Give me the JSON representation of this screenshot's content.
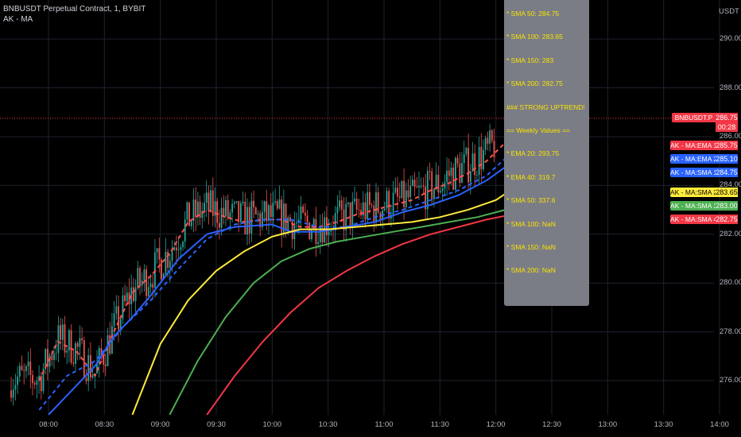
{
  "header": {
    "title": "BNBUSDT Perpetual Contract, 1, BYBIT",
    "indicator": "AK - MA"
  },
  "info_box": {
    "lines": [
      "* SMA 50: 284.75",
      "* SMA 100: 283.65",
      "* SMA 150: 283",
      "* SMA 200: 282.75",
      "### STRONG UPTREND!",
      "== Weekly Values ==",
      "* EMA 20: 293.75",
      "* EMA 40: 319.7",
      "* SMA 50: 337.6",
      "* SMA 100: NaN",
      "* SMA 150: NaN",
      "* SMA 200: NaN"
    ]
  },
  "price_axis": {
    "unit": "USDT",
    "ticks": [
      "290.00",
      "288.00",
      "286.00",
      "284.00",
      "282.00",
      "280.00",
      "278.00",
      "276.00"
    ]
  },
  "time_axis": {
    "ticks": [
      "08:00",
      "08:30",
      "09:00",
      "09:30",
      "10:00",
      "10:30",
      "11:00",
      "11:30",
      "12:00",
      "12:30",
      "13:00",
      "13:30",
      "14:00"
    ]
  },
  "last_price": {
    "symbol": "BNBUSDT.P",
    "price": "286.75",
    "countdown": "00:28",
    "color": "#f23645"
  },
  "ma_labels": [
    {
      "name": "AK - MA:EMA 1",
      "value": "285.75",
      "color": "#f23645"
    },
    {
      "name": "AK - MA:EMA 2",
      "value": "285.10",
      "color": "#2962ff"
    },
    {
      "name": "AK - MA:SMA 1",
      "value": "284.75",
      "color": "#2962ff"
    },
    {
      "name": "AK - MA:SMA 2",
      "value": "283.65",
      "color": "#ffeb3b"
    },
    {
      "name": "AK - MA:SMA 3",
      "value": "283.00",
      "color": "#4caf50"
    },
    {
      "name": "AK - MA:SMA 4",
      "value": "282.75",
      "color": "#f23645"
    }
  ],
  "colors": {
    "up": "#26a69a",
    "down": "#ef5350",
    "ema1": "#ff5252",
    "ema2": "#2962ff",
    "sma1": "#2962ff",
    "sma2": "#ffeb3b",
    "sma3": "#4caf50",
    "sma4": "#f23645",
    "grid": "#1e222d"
  },
  "chart_data": {
    "type": "line",
    "title": "BNBUSDT Perpetual Contract, 1, BYBIT",
    "y_range": [
      274.6,
      291.6
    ],
    "x_range": [
      "07:45",
      "14:15"
    ],
    "series": [
      {
        "name": "AK - MA:EMA 1",
        "style": "dashed",
        "x": [
          "07:55",
          "08:05",
          "08:15",
          "08:25",
          "08:35",
          "08:45",
          "08:55",
          "09:05",
          "09:15",
          "09:25",
          "09:35",
          "09:45",
          "09:55",
          "10:05",
          "10:15",
          "10:25",
          "10:35",
          "10:45",
          "10:55",
          "11:05",
          "11:15",
          "11:25",
          "11:35",
          "11:45",
          "11:55",
          "12:05"
        ],
        "y": [
          276.0,
          277.6,
          277.2,
          276.2,
          278.0,
          279.6,
          280.3,
          281.2,
          282.5,
          283.0,
          282.7,
          282.5,
          282.6,
          282.6,
          282.3,
          282.3,
          282.5,
          282.8,
          283.0,
          283.2,
          283.4,
          283.8,
          284.1,
          284.5,
          285.0,
          285.75
        ]
      },
      {
        "name": "AK - MA:EMA 2",
        "style": "dashed",
        "x": [
          "07:55",
          "08:10",
          "08:25",
          "08:40",
          "08:55",
          "09:10",
          "09:25",
          "09:40",
          "09:55",
          "10:10",
          "10:25",
          "10:40",
          "10:55",
          "11:10",
          "11:25",
          "11:40",
          "11:55",
          "12:05"
        ],
        "y": [
          274.8,
          276.2,
          276.8,
          278.2,
          279.3,
          280.6,
          281.8,
          282.4,
          282.6,
          282.6,
          282.3,
          282.3,
          282.7,
          283.0,
          283.4,
          283.8,
          284.4,
          285.1
        ]
      },
      {
        "name": "AK - MA:SMA 1",
        "x": [
          "08:00",
          "08:15",
          "08:25",
          "08:35",
          "08:45",
          "08:55",
          "09:10",
          "09:25",
          "09:40",
          "10:00",
          "10:10",
          "10:25",
          "10:40",
          "10:55",
          "11:10",
          "11:25",
          "11:40",
          "11:55",
          "12:05"
        ],
        "y": [
          274.6,
          275.8,
          276.6,
          277.8,
          278.6,
          279.5,
          281.0,
          282.0,
          282.3,
          282.4,
          282.1,
          282.1,
          282.3,
          282.5,
          282.9,
          283.2,
          283.6,
          284.2,
          284.75
        ]
      },
      {
        "name": "AK - MA:SMA 2",
        "x": [
          "08:45",
          "09:00",
          "09:15",
          "09:30",
          "09:45",
          "10:00",
          "10:15",
          "10:30",
          "10:45",
          "11:00",
          "11:15",
          "11:30",
          "11:45",
          "12:00",
          "12:05"
        ],
        "y": [
          274.6,
          277.5,
          279.3,
          280.5,
          281.3,
          281.9,
          282.2,
          282.2,
          282.3,
          282.4,
          282.5,
          282.7,
          283.0,
          283.4,
          283.65
        ]
      },
      {
        "name": "AK - MA:SMA 3",
        "x": [
          "09:05",
          "09:20",
          "09:35",
          "09:50",
          "10:05",
          "10:20",
          "10:35",
          "10:50",
          "11:05",
          "11:20",
          "11:35",
          "11:50",
          "12:05"
        ],
        "y": [
          274.6,
          276.8,
          278.6,
          280.0,
          280.9,
          281.4,
          281.7,
          281.9,
          282.1,
          282.3,
          282.5,
          282.7,
          283.0
        ]
      },
      {
        "name": "AK - MA:SMA 4",
        "x": [
          "09:25",
          "09:40",
          "09:55",
          "10:10",
          "10:25",
          "10:40",
          "10:55",
          "11:10",
          "11:25",
          "11:40",
          "11:55",
          "12:05"
        ],
        "y": [
          274.6,
          276.2,
          277.6,
          278.8,
          279.8,
          280.5,
          281.1,
          281.6,
          282.0,
          282.3,
          282.6,
          282.75
        ]
      }
    ]
  }
}
